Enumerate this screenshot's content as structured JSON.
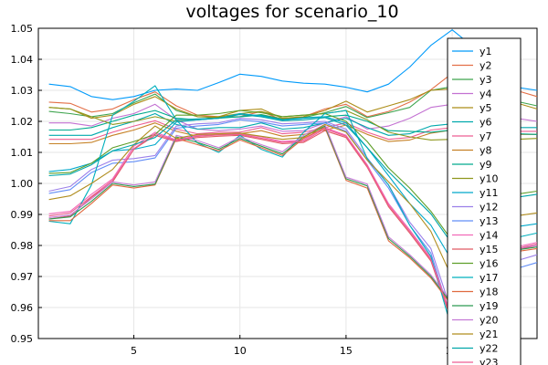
{
  "chart_data": {
    "type": "line",
    "title": "voltages for scenario_10",
    "xlabel": "",
    "ylabel": "",
    "xlim": [
      0.5,
      24
    ],
    "ylim": [
      0.95,
      1.05
    ],
    "x_ticks": [
      5,
      10,
      15,
      20
    ],
    "y_ticks": [
      0.95,
      0.96,
      0.97,
      0.98,
      0.99,
      1.0,
      1.01,
      1.02,
      1.03,
      1.04,
      1.05
    ],
    "x_tick_labels": [
      "5",
      "10",
      "15",
      "20"
    ],
    "y_tick_labels": [
      "0.95",
      "0.96",
      "0.97",
      "0.98",
      "0.99",
      "1.00",
      "1.01",
      "1.02",
      "1.03",
      "1.04",
      "1.05"
    ],
    "grid": true,
    "legend_position": "top-right",
    "x": [
      1,
      2,
      3,
      4,
      5,
      6,
      7,
      8,
      9,
      10,
      11,
      12,
      13,
      14,
      15,
      16,
      17,
      18,
      19,
      20,
      21,
      22,
      23,
      24
    ],
    "series": [
      {
        "name": "y1",
        "color": "#009AFA",
        "values": [
          1.032,
          1.0312,
          1.028,
          1.027,
          1.028,
          1.03,
          1.0304,
          1.03,
          1.0325,
          1.0352,
          1.0345,
          1.033,
          1.0323,
          1.032,
          1.031,
          1.0295,
          1.032,
          1.0375,
          1.0445,
          1.0495,
          1.044,
          1.037,
          1.031,
          1.03
        ]
      },
      {
        "name": "y2",
        "color": "#E36F47",
        "values": [
          1.0262,
          1.0258,
          1.023,
          1.024,
          1.027,
          1.0295,
          1.025,
          1.022,
          1.0215,
          1.0215,
          1.0232,
          1.0205,
          1.0215,
          1.024,
          1.0255,
          1.0215,
          1.0232,
          1.0262,
          1.0302,
          1.0355,
          1.0372,
          1.0338,
          1.03,
          1.028
        ]
      },
      {
        "name": "y3",
        "color": "#3EA44E",
        "values": [
          1.0232,
          1.0225,
          1.0215,
          1.0225,
          1.026,
          1.0288,
          1.0235,
          1.0215,
          1.0212,
          1.0215,
          1.0222,
          1.0208,
          1.0212,
          1.0228,
          1.0248,
          1.0212,
          1.0228,
          1.0245,
          1.03,
          1.0312,
          1.0305,
          1.03,
          1.0265,
          1.025
        ]
      },
      {
        "name": "y4",
        "color": "#C371D2",
        "values": [
          1.0195,
          1.0195,
          1.0185,
          1.021,
          1.0225,
          1.0255,
          1.0205,
          1.0175,
          1.017,
          1.0175,
          1.0185,
          1.0168,
          1.017,
          1.0195,
          1.0215,
          1.0175,
          1.0185,
          1.021,
          1.0245,
          1.0255,
          1.025,
          1.0245,
          1.021,
          1.02
        ]
      },
      {
        "name": "y5",
        "color": "#AC8D18",
        "values": [
          1.0245,
          1.024,
          1.021,
          1.022,
          1.0255,
          1.028,
          1.024,
          1.0215,
          1.0215,
          1.0235,
          1.024,
          1.021,
          1.0215,
          1.0235,
          1.0265,
          1.023,
          1.025,
          1.027,
          1.03,
          1.0305,
          1.03,
          1.0295,
          1.026,
          1.024
        ]
      },
      {
        "name": "y6",
        "color": "#00A9AD",
        "values": [
          1.0155,
          1.0155,
          1.0155,
          1.018,
          1.02,
          1.0225,
          1.019,
          1.0175,
          1.018,
          1.018,
          1.0195,
          1.0175,
          1.018,
          1.0195,
          1.021,
          1.018,
          1.0155,
          1.016,
          1.0185,
          1.0192,
          1.019,
          1.019,
          1.018,
          1.018
        ]
      },
      {
        "name": "y7",
        "color": "#ED5E93",
        "values": [
          1.0142,
          1.0142,
          1.0142,
          1.0165,
          1.0185,
          1.0202,
          1.0175,
          1.016,
          1.0165,
          1.0165,
          1.018,
          1.016,
          1.0165,
          1.018,
          1.0195,
          1.0165,
          1.0142,
          1.0148,
          1.0172,
          1.018,
          1.0178,
          1.0178,
          1.0168,
          1.0168
        ]
      },
      {
        "name": "y8",
        "color": "#C68125",
        "values": [
          1.0128,
          1.0128,
          1.0132,
          1.0155,
          1.0172,
          1.0195,
          1.0168,
          1.0152,
          1.0158,
          1.016,
          1.017,
          1.0152,
          1.0158,
          1.0172,
          1.0188,
          1.0158,
          1.0135,
          1.014,
          1.0162,
          1.0172,
          1.017,
          1.0168,
          1.0158,
          1.0158
        ]
      },
      {
        "name": "y9",
        "color": "#00A98D",
        "values": [
          1.0172,
          1.0172,
          1.018,
          1.02,
          1.022,
          1.0235,
          1.021,
          1.0205,
          1.021,
          1.0215,
          1.022,
          1.0205,
          1.0212,
          1.0215,
          1.022,
          1.02,
          1.017,
          1.0168,
          1.0165,
          1.0172,
          1.0168,
          1.0165,
          1.016,
          1.0158
        ]
      },
      {
        "name": "y10",
        "color": "#8E971D",
        "values": [
          1.0245,
          1.024,
          1.0215,
          1.019,
          1.02,
          1.0215,
          1.02,
          1.0205,
          1.0215,
          1.0225,
          1.0232,
          1.0215,
          1.022,
          1.0225,
          1.0235,
          1.0205,
          1.0165,
          1.015,
          1.014,
          1.0142,
          1.014,
          1.014,
          1.0142,
          1.0145
        ]
      },
      {
        "name": "y11",
        "color": "#00A8CB",
        "values": [
          1.0038,
          1.0045,
          1.0065,
          1.0105,
          1.011,
          1.0125,
          1.0198,
          1.0205,
          1.021,
          1.0225,
          1.0218,
          1.0205,
          1.021,
          1.0215,
          1.0195,
          1.0115,
          1.0025,
          0.9935,
          0.9865,
          0.975,
          0.979,
          0.984,
          0.986,
          0.987
        ]
      },
      {
        "name": "y12",
        "color": "#9B7FE9",
        "values": [
          0.9975,
          0.999,
          1.0045,
          1.0075,
          1.008,
          1.009,
          1.0185,
          1.0192,
          1.0195,
          1.021,
          1.0205,
          1.0192,
          1.0195,
          1.02,
          1.0175,
          1.0082,
          0.9995,
          0.9875,
          0.979,
          0.958,
          0.965,
          0.972,
          0.975,
          0.977
        ]
      },
      {
        "name": "y13",
        "color": "#618DF6",
        "values": [
          0.9968,
          0.998,
          1.0035,
          1.0065,
          1.007,
          1.0082,
          1.0178,
          1.0185,
          1.019,
          1.0205,
          1.0198,
          1.0185,
          1.019,
          1.0195,
          1.0168,
          1.0075,
          0.9985,
          0.9865,
          0.9775,
          0.9555,
          0.9625,
          0.9695,
          0.9725,
          0.9745
        ]
      },
      {
        "name": "y14",
        "color": "#F26AB8",
        "values": [
          0.9902,
          0.991,
          0.9965,
          1.0015,
          1.012,
          1.0165,
          1.014,
          1.0155,
          1.016,
          1.016,
          1.015,
          1.0135,
          1.014,
          1.018,
          1.0155,
          1.006,
          0.9935,
          0.985,
          0.976,
          0.9565,
          0.968,
          0.976,
          0.9795,
          0.981
        ]
      },
      {
        "name": "y15",
        "color": "#E15A64",
        "values": [
          0.9885,
          0.9895,
          0.9955,
          1.0005,
          1.011,
          1.0155,
          1.0135,
          1.0148,
          1.0152,
          1.0155,
          1.0142,
          1.0128,
          1.0132,
          1.017,
          1.0148,
          1.0052,
          0.9925,
          0.984,
          0.975,
          0.955,
          0.9665,
          0.975,
          0.9785,
          0.98
        ]
      },
      {
        "name": "y16",
        "color": "#5E9E29",
        "values": [
          1.0032,
          1.0035,
          1.0065,
          1.0115,
          1.0135,
          1.0158,
          1.022,
          1.022,
          1.0225,
          1.0235,
          1.0228,
          1.0215,
          1.022,
          1.0225,
          1.02,
          1.0135,
          1.005,
          0.9985,
          0.991,
          0.9815,
          0.9885,
          0.9935,
          0.9965,
          0.9975
        ]
      },
      {
        "name": "y17",
        "color": "#00B0BD",
        "values": [
          0.9878,
          0.987,
          0.9995,
          1.022,
          1.0265,
          1.0315,
          1.0205,
          1.013,
          1.01,
          1.0155,
          1.011,
          1.0085,
          1.0165,
          1.0225,
          1.0235,
          1.008,
          0.9995,
          0.9865,
          0.9765,
          0.9525,
          0.9705,
          0.979,
          0.9825,
          0.984
        ]
      },
      {
        "name": "y18",
        "color": "#E06A3F",
        "values": [
          0.988,
          0.988,
          0.9935,
          0.9995,
          0.9985,
          0.9995,
          1.0145,
          1.0125,
          1.0105,
          1.014,
          1.0115,
          1.009,
          1.0145,
          1.018,
          1.001,
          0.9985,
          0.9815,
          0.976,
          0.9695,
          0.9605,
          0.9705,
          0.975,
          0.978,
          0.979
        ]
      },
      {
        "name": "y19",
        "color": "#2C9A50",
        "values": [
          0.9885,
          0.9892,
          0.9942,
          1.0,
          0.999,
          0.9998,
          1.015,
          1.0132,
          1.011,
          1.0145,
          1.012,
          1.0095,
          1.015,
          1.0185,
          1.0015,
          0.9992,
          0.9822,
          0.9765,
          0.97,
          0.961,
          0.971,
          0.9755,
          0.9785,
          0.9795
        ]
      },
      {
        "name": "y20",
        "color": "#C57BD6",
        "values": [
          0.989,
          0.9898,
          0.995,
          1.0005,
          0.9995,
          1.0005,
          1.0155,
          1.0138,
          1.0115,
          1.015,
          1.0125,
          1.0102,
          1.0155,
          1.019,
          1.002,
          0.9998,
          0.9828,
          0.977,
          0.9705,
          0.9615,
          0.9715,
          0.976,
          0.979,
          0.98
        ]
      },
      {
        "name": "y21",
        "color": "#B08D1F",
        "values": [
          0.9948,
          0.996,
          1.0,
          1.0045,
          1.0125,
          1.0185,
          1.0145,
          1.0158,
          1.016,
          1.0162,
          1.0152,
          1.0142,
          1.0148,
          1.019,
          1.0165,
          1.0075,
          1.0005,
          0.9935,
          0.9845,
          0.9695,
          0.9815,
          0.987,
          0.9895,
          0.9905
        ]
      },
      {
        "name": "y22",
        "color": "#00A6A9",
        "values": [
          1.0025,
          1.003,
          1.006,
          1.0105,
          1.0125,
          1.0148,
          1.0205,
          1.0208,
          1.021,
          1.0222,
          1.0215,
          1.0202,
          1.0205,
          1.0212,
          1.0188,
          1.0115,
          1.0038,
          0.997,
          0.9902,
          0.9805,
          0.9875,
          0.9925,
          0.9955,
          0.9965
        ]
      },
      {
        "name": "y23",
        "color": "#ED5E93",
        "values": [
          0.9895,
          0.9905,
          0.9958,
          1.001,
          1.0112,
          1.016,
          1.0138,
          1.0152,
          1.0156,
          1.0158,
          1.0146,
          1.0132,
          1.0136,
          1.0176,
          1.0152,
          1.0056,
          0.993,
          0.9845,
          0.9755,
          0.9558,
          0.9672,
          0.9755,
          0.979,
          0.9805
        ]
      }
    ]
  }
}
